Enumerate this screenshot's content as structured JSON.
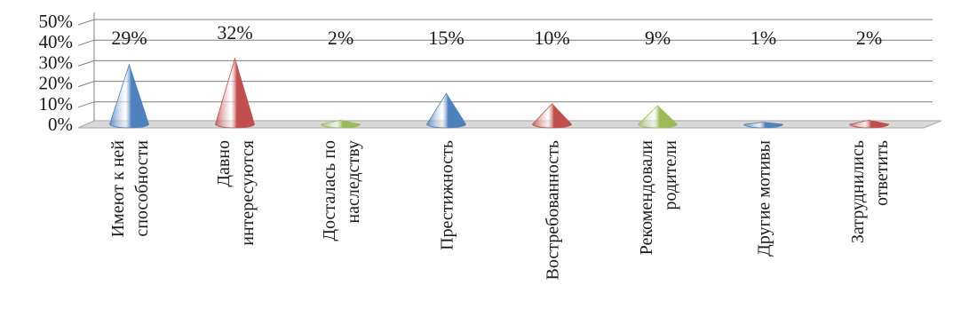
{
  "chart_data": {
    "type": "bar",
    "shape": "cone",
    "categories": [
      [
        "Имеют к ней",
        "способности"
      ],
      [
        "Давно",
        "интересуются"
      ],
      [
        "Досталась по",
        "наследству"
      ],
      [
        "Престижность"
      ],
      [
        "Востребованность"
      ],
      [
        "Рекомендовали",
        "родители"
      ],
      [
        "Другие мотивы"
      ],
      [
        "Затруднились",
        "ответить"
      ]
    ],
    "values": [
      29,
      32,
      2,
      15,
      10,
      9,
      1,
      2
    ],
    "data_labels": [
      "29%",
      "32%",
      "2%",
      "15%",
      "10%",
      "9%",
      "1%",
      "2%"
    ],
    "colors": [
      "#4f81bd",
      "#c0504d",
      "#9bbb59",
      "#4f81bd",
      "#c0504d",
      "#9bbb59",
      "#4f81bd",
      "#c0504d"
    ],
    "y_ticks": [
      "0%",
      "10%",
      "20%",
      "30%",
      "40%",
      "50%"
    ],
    "ylim": [
      0,
      50
    ],
    "grid": true,
    "legend": "none"
  }
}
